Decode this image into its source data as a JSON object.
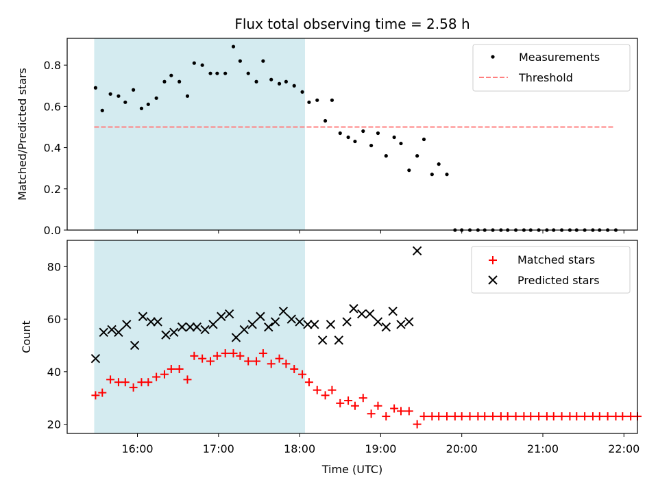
{
  "chart_data": {
    "type": "scatter",
    "title": "Flux total observing time = 2.58 h",
    "xlabel": "Time (UTC)",
    "x_tick_labels": [
      "16:00",
      "17:00",
      "18:00",
      "19:00",
      "20:00",
      "21:00",
      "22:00"
    ],
    "x_range": [
      "15:08",
      "22:10"
    ],
    "shared_x_axis": true,
    "highlight_span": {
      "start": "15:28",
      "end": "18:04",
      "color": "#d4ebf0"
    },
    "panels": [
      {
        "name": "ratio",
        "ylabel": "Matched/Predicted stars",
        "ylim": [
          0,
          0.93
        ],
        "y_ticks": [
          0.0,
          0.2,
          0.4,
          0.6,
          0.8
        ],
        "y_tick_labels": [
          "0.0",
          "0.2",
          "0.4",
          "0.6",
          "0.8"
        ],
        "legend": {
          "placement": "top-right",
          "entries": [
            "Measurements",
            "Threshold"
          ]
        },
        "series": [
          {
            "name": "Measurements",
            "marker": "dot",
            "color": "#000000",
            "x": [
              "15:29",
              "15:34",
              "15:40",
              "15:46",
              "15:51",
              "15:57",
              "16:03",
              "16:08",
              "16:14",
              "16:20",
              "16:25",
              "16:31",
              "16:37",
              "16:42",
              "16:48",
              "16:54",
              "16:59",
              "17:05",
              "17:11",
              "17:16",
              "17:22",
              "17:28",
              "17:33",
              "17:39",
              "17:45",
              "17:50",
              "17:56",
              "18:02",
              "18:07",
              "18:13",
              "18:19",
              "18:24",
              "18:30",
              "18:36",
              "18:41",
              "18:47",
              "18:53",
              "18:58",
              "19:04",
              "19:10",
              "19:15",
              "19:21",
              "19:27",
              "19:32",
              "19:38",
              "19:43",
              "19:49",
              "19:55",
              "20:00",
              "20:06",
              "20:12",
              "20:17",
              "20:23",
              "20:29",
              "20:34",
              "20:40",
              "20:46",
              "20:51",
              "20:57",
              "21:03",
              "21:08",
              "21:14",
              "21:20",
              "21:25",
              "21:31",
              "21:37",
              "21:42",
              "21:48",
              "21:54"
            ],
            "y": [
              0.69,
              0.58,
              0.66,
              0.65,
              0.62,
              0.68,
              0.59,
              0.61,
              0.64,
              0.72,
              0.75,
              0.72,
              0.65,
              0.81,
              0.8,
              0.76,
              0.76,
              0.76,
              0.89,
              0.82,
              0.76,
              0.72,
              0.82,
              0.73,
              0.71,
              0.72,
              0.7,
              0.67,
              0.62,
              0.63,
              0.53,
              0.63,
              0.47,
              0.45,
              0.43,
              0.48,
              0.41,
              0.47,
              0.36,
              0.45,
              0.42,
              0.29,
              0.36,
              0.44,
              0.27,
              0.32,
              0.27,
              0.0,
              0.0,
              0.0,
              0.0,
              0.0,
              0.0,
              0.0,
              0.0,
              0.0,
              0.0,
              0.0,
              0.0,
              0.0,
              0.0,
              0.0,
              0.0,
              0.0,
              0.0,
              0.0,
              0.0,
              0.0,
              0.0
            ]
          },
          {
            "name": "Threshold",
            "style": "dashed-line",
            "color": "#ff7f7f",
            "x": [
              "15:28",
              "21:52"
            ],
            "y": [
              0.5,
              0.5
            ]
          }
        ]
      },
      {
        "name": "counts",
        "ylabel": "Count",
        "ylim": [
          16.5,
          90
        ],
        "y_ticks": [
          20,
          40,
          60,
          80
        ],
        "y_tick_labels": [
          "20",
          "40",
          "60",
          "80"
        ],
        "legend": {
          "placement": "top-right",
          "entries": [
            "Matched stars",
            "Predicted stars"
          ]
        },
        "series": [
          {
            "name": "Matched stars",
            "marker": "plus",
            "color": "#ff0000",
            "x": [
              "15:29",
              "15:34",
              "15:40",
              "15:46",
              "15:51",
              "15:57",
              "16:03",
              "16:08",
              "16:14",
              "16:20",
              "16:25",
              "16:31",
              "16:37",
              "16:42",
              "16:48",
              "16:54",
              "16:59",
              "17:05",
              "17:11",
              "17:16",
              "17:22",
              "17:28",
              "17:33",
              "17:39",
              "17:45",
              "17:50",
              "17:56",
              "18:02",
              "18:07",
              "18:13",
              "18:19",
              "18:24",
              "18:30",
              "18:36",
              "18:41",
              "18:47",
              "18:53",
              "18:58",
              "19:04",
              "19:10",
              "19:15",
              "19:21",
              "19:27",
              "19:32",
              "19:38",
              "19:43",
              "19:49",
              "19:55",
              "20:00",
              "20:06",
              "20:12",
              "20:17",
              "20:23",
              "20:29",
              "20:34",
              "20:40",
              "20:46",
              "20:51",
              "20:57",
              "21:03",
              "21:08",
              "21:14",
              "21:20",
              "21:25",
              "21:31",
              "21:37",
              "21:42",
              "21:48",
              "21:54",
              "21:59",
              "22:05",
              "22:10"
            ],
            "y": [
              31,
              32,
              37,
              36,
              36,
              34,
              36,
              36,
              38,
              39,
              41,
              41,
              37,
              46,
              45,
              44,
              46,
              47,
              47,
              46,
              44,
              44,
              47,
              43,
              45,
              43,
              41,
              39,
              36,
              33,
              31,
              33,
              28,
              29,
              27,
              30,
              24,
              27,
              23,
              26,
              25,
              25,
              20,
              23,
              23,
              23,
              23,
              23,
              23,
              23,
              23,
              23,
              23,
              23,
              23,
              23,
              23,
              23,
              23,
              23,
              23,
              23,
              23,
              23,
              23,
              23,
              23,
              23,
              23,
              23,
              23,
              23
            ]
          },
          {
            "name": "Predicted stars",
            "marker": "x",
            "color": "#000000",
            "x": [
              "15:29",
              "15:35",
              "15:41",
              "15:46",
              "15:52",
              "15:58",
              "16:04",
              "16:10",
              "16:15",
              "16:21",
              "16:27",
              "16:33",
              "16:39",
              "16:44",
              "16:50",
              "16:56",
              "17:02",
              "17:08",
              "17:13",
              "17:19",
              "17:25",
              "17:31",
              "17:37",
              "17:42",
              "17:48",
              "17:54",
              "18:00",
              "18:06",
              "18:11",
              "18:17",
              "18:23",
              "18:29",
              "18:35",
              "18:40",
              "18:46",
              "18:52",
              "18:58",
              "19:04",
              "19:09",
              "19:15",
              "19:21",
              "19:27"
            ],
            "y": [
              45,
              55,
              56,
              55,
              58,
              50,
              61,
              59,
              59,
              54,
              55,
              57,
              57,
              57,
              56,
              58,
              61,
              62,
              53,
              56,
              58,
              61,
              57,
              59,
              63,
              60,
              59,
              58,
              58,
              52,
              58,
              52,
              59,
              64,
              62,
              62,
              59,
              57,
              63,
              58,
              59,
              86
            ]
          }
        ]
      }
    ]
  }
}
